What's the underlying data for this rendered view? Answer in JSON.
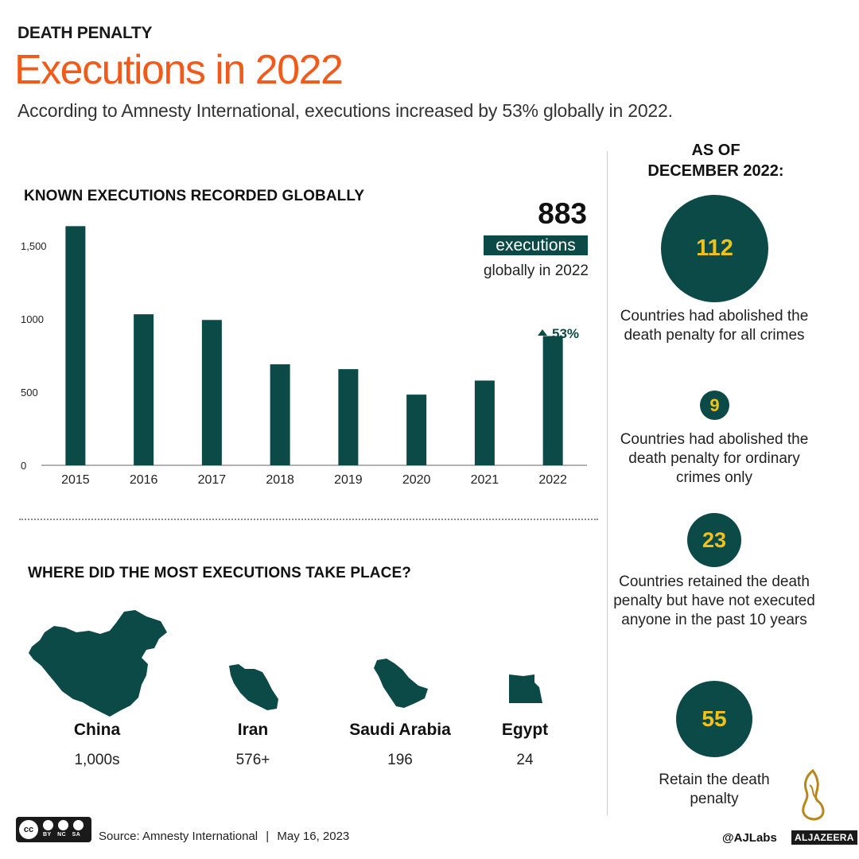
{
  "header": {
    "kicker": "DEATH PENALTY",
    "title": "Executions in 2022",
    "subtitle": "According to Amnesty International, executions increased by 53% globally in 2022."
  },
  "chart_data": {
    "type": "bar",
    "title": "KNOWN EXECUTIONS RECORDED GLOBALLY",
    "categories": [
      "2015",
      "2016",
      "2017",
      "2018",
      "2019",
      "2020",
      "2021",
      "2022"
    ],
    "values": [
      1634,
      1032,
      993,
      690,
      657,
      483,
      579,
      883
    ],
    "yticks": [
      0,
      500,
      1000,
      1500
    ],
    "ytick_labels": [
      "0",
      "500",
      "1000",
      "1,500"
    ],
    "ylim": [
      0,
      1700
    ],
    "grid": false,
    "annotation": {
      "label": "53%",
      "category": "2022"
    },
    "colors": {
      "bar": "#0b4a47"
    }
  },
  "highlight": {
    "number": "883",
    "label": "executions",
    "sub": "globally in 2022"
  },
  "where": {
    "title": "WHERE DID THE MOST EXECUTIONS TAKE PLACE?",
    "countries": [
      {
        "name": "China",
        "value": "1,000s",
        "icon": "china-map-icon"
      },
      {
        "name": "Iran",
        "value": "576+",
        "icon": "iran-map-icon"
      },
      {
        "name": "Saudi Arabia",
        "value": "196",
        "icon": "saudi-arabia-map-icon"
      },
      {
        "name": "Egypt",
        "value": "24",
        "icon": "egypt-map-icon"
      }
    ]
  },
  "sidebar": {
    "heading_line1": "AS OF",
    "heading_line2": "DECEMBER 2022:",
    "stats": [
      {
        "value": "112",
        "desc": "Countries had abolished the death penalty for all crimes"
      },
      {
        "value": "9",
        "desc": "Countries had abolished the death penalty for ordinary crimes only"
      },
      {
        "value": "23",
        "desc": "Countries retained the death penalty but have not executed anyone in the past 10 years"
      },
      {
        "value": "55",
        "desc": "Retain the death penalty"
      }
    ]
  },
  "footer": {
    "source_label": "Source: Amnesty International",
    "separator": "|",
    "date": "May 16, 2023",
    "license_badges": [
      "BY",
      "NC",
      "SA"
    ],
    "handle": "@AJLabs",
    "brand": "ALJAZEERA"
  },
  "colors": {
    "accent": "#f05a1a",
    "primary": "#0b4a47",
    "highlight_number": "#f2c21a"
  }
}
